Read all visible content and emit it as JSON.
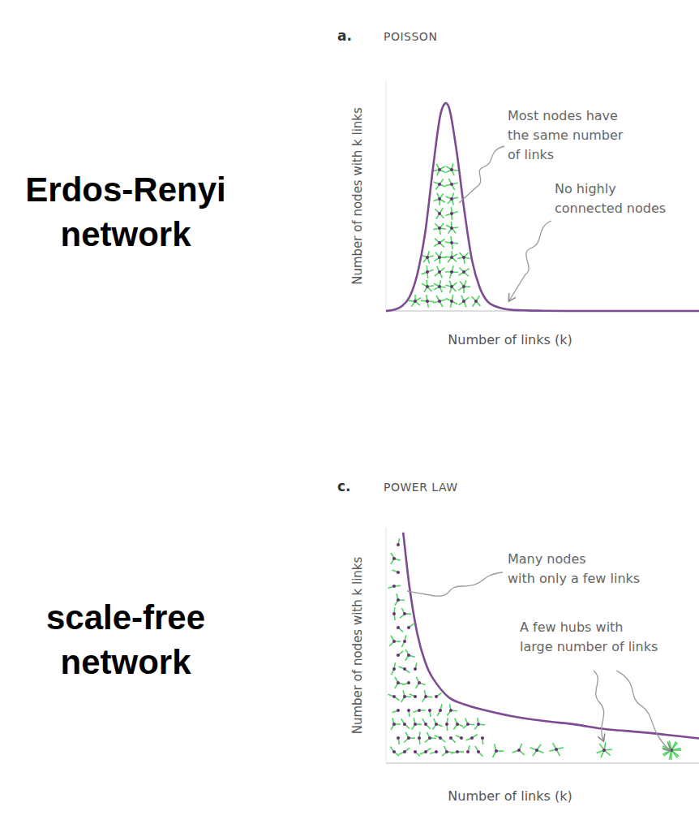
{
  "chart_data": [
    {
      "type": "line",
      "panel_label": "a.",
      "title": "POISSON",
      "network_label": "Erdos-Renyi\nnetwork",
      "x_label": "Number of links (k)",
      "y_label": "Number of nodes with k links",
      "annotations": [
        "Most nodes have\nthe same number\nof links",
        "No highly\nconnected nodes"
      ],
      "x": [
        0,
        0.5,
        1,
        1.5,
        2,
        2.5,
        3,
        3.5,
        4,
        4.5,
        5,
        5.5,
        6,
        6.5,
        7,
        7.5,
        8,
        9,
        10,
        12,
        14,
        16,
        18,
        20
      ],
      "values": [
        0,
        0.5,
        2,
        6,
        16,
        34,
        62,
        86,
        89,
        70,
        44,
        22,
        10,
        4,
        2,
        1,
        0.5,
        0.2,
        0.1,
        0,
        0,
        0,
        0,
        0
      ],
      "xlim": [
        0,
        20
      ],
      "ylim": [
        0,
        100
      ],
      "tick_labels": false,
      "color": "#7d4b91"
    },
    {
      "type": "line",
      "panel_label": "c.",
      "title": "POWER LAW",
      "network_label": "scale-free\nnetwork",
      "x_label": "Number of links (k)",
      "y_label": "Number of nodes with k links",
      "annotations": [
        "Many nodes\nwith only a few links",
        "A few hubs with\nlarge number of links"
      ],
      "x": [
        1.1,
        1.5,
        2,
        2.5,
        3,
        4,
        5,
        6,
        8,
        10,
        12,
        14,
        16,
        18,
        20
      ],
      "values": [
        98,
        75,
        55,
        43,
        36,
        28,
        25,
        23,
        20,
        18,
        16.5,
        14.5,
        13.3,
        12,
        10.5
      ],
      "xlim": [
        0,
        20
      ],
      "ylim": [
        0,
        100
      ],
      "tick_labels": false,
      "color": "#7d4b91"
    }
  ]
}
